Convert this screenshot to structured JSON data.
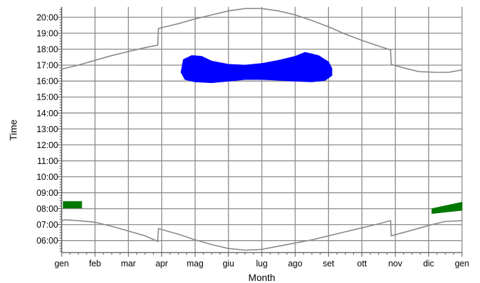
{
  "chart_data": {
    "type": "line",
    "title": "",
    "xlabel": "Month",
    "ylabel": "Time",
    "x_ticks": [
      "gen",
      "feb",
      "mar",
      "apr",
      "mag",
      "giu",
      "lug",
      "ago",
      "set",
      "ott",
      "nov",
      "dic",
      "gen"
    ],
    "y_ticks": [
      "06:00",
      "07:00",
      "08:00",
      "09:00",
      "10:00",
      "11:00",
      "12:00",
      "13:00",
      "14:00",
      "15:00",
      "16:00",
      "17:00",
      "18:00",
      "19:00",
      "20:00"
    ],
    "xlim": [
      0,
      12
    ],
    "ylim_hours": [
      5.25,
      20.65
    ],
    "grid": true,
    "series": [
      {
        "type": "line",
        "color": "#888888",
        "points": [
          [
            0,
            16.75
          ],
          [
            0.5,
            17.0
          ],
          [
            1,
            17.3
          ],
          [
            1.5,
            17.6
          ],
          [
            2,
            17.85
          ],
          [
            2.5,
            18.1
          ],
          [
            2.88,
            18.25
          ],
          [
            2.9,
            19.3
          ],
          [
            3.5,
            19.6
          ],
          [
            4,
            19.9
          ],
          [
            4.5,
            20.15
          ],
          [
            5,
            20.4
          ],
          [
            5.5,
            20.55
          ],
          [
            6,
            20.55
          ],
          [
            6.5,
            20.4
          ],
          [
            7,
            20.15
          ],
          [
            7.5,
            19.8
          ],
          [
            8,
            19.4
          ],
          [
            8.5,
            18.95
          ],
          [
            9,
            18.55
          ],
          [
            9.5,
            18.2
          ],
          [
            9.86,
            17.95
          ],
          [
            9.88,
            17.05
          ],
          [
            10.3,
            16.8
          ],
          [
            10.7,
            16.6
          ],
          [
            11.2,
            16.55
          ],
          [
            11.6,
            16.55
          ],
          [
            12,
            16.7
          ]
        ]
      },
      {
        "type": "line",
        "color": "#888888",
        "points": [
          [
            0,
            7.25
          ],
          [
            0.1,
            7.3
          ],
          [
            0.5,
            7.25
          ],
          [
            1,
            7.15
          ],
          [
            1.5,
            6.9
          ],
          [
            2,
            6.6
          ],
          [
            2.5,
            6.3
          ],
          [
            2.88,
            5.95
          ],
          [
            2.9,
            6.75
          ],
          [
            3.5,
            6.4
          ],
          [
            4,
            6.05
          ],
          [
            4.5,
            5.75
          ],
          [
            5,
            5.5
          ],
          [
            5.5,
            5.4
          ],
          [
            6,
            5.45
          ],
          [
            6.5,
            5.65
          ],
          [
            7,
            5.85
          ],
          [
            7.5,
            6.05
          ],
          [
            8,
            6.3
          ],
          [
            8.5,
            6.55
          ],
          [
            9,
            6.8
          ],
          [
            9.5,
            7.05
          ],
          [
            9.86,
            7.25
          ],
          [
            9.88,
            6.3
          ],
          [
            10.5,
            6.65
          ],
          [
            11,
            6.95
          ],
          [
            11.5,
            7.2
          ],
          [
            12,
            7.25
          ]
        ]
      },
      {
        "type": "area",
        "color": "#0000ff",
        "points": [
          [
            3.58,
            16.55
          ],
          [
            3.7,
            16.1
          ],
          [
            4,
            15.95
          ],
          [
            4.5,
            15.9
          ],
          [
            5,
            16.0
          ],
          [
            5.5,
            16.1
          ],
          [
            6,
            16.1
          ],
          [
            6.5,
            16.05
          ],
          [
            7,
            16.0
          ],
          [
            7.5,
            15.95
          ],
          [
            7.9,
            16.05
          ],
          [
            8.1,
            16.35
          ],
          [
            8.1,
            16.8
          ],
          [
            8.0,
            17.2
          ],
          [
            7.7,
            17.6
          ],
          [
            7.3,
            17.8
          ],
          [
            7.0,
            17.55
          ],
          [
            6.5,
            17.3
          ],
          [
            6.0,
            17.1
          ],
          [
            5.5,
            17.0
          ],
          [
            5.0,
            17.05
          ],
          [
            4.5,
            17.25
          ],
          [
            4.2,
            17.55
          ],
          [
            3.9,
            17.6
          ],
          [
            3.65,
            17.35
          ]
        ]
      },
      {
        "type": "area",
        "color": "#007700",
        "points": [
          [
            0.05,
            8.05
          ],
          [
            0.6,
            8.05
          ],
          [
            0.6,
            8.45
          ],
          [
            0.05,
            8.45
          ]
        ]
      },
      {
        "type": "area",
        "color": "#007700",
        "points": [
          [
            11.1,
            7.7
          ],
          [
            12.0,
            7.9
          ],
          [
            12.0,
            8.4
          ],
          [
            11.1,
            8.0
          ]
        ]
      }
    ]
  }
}
